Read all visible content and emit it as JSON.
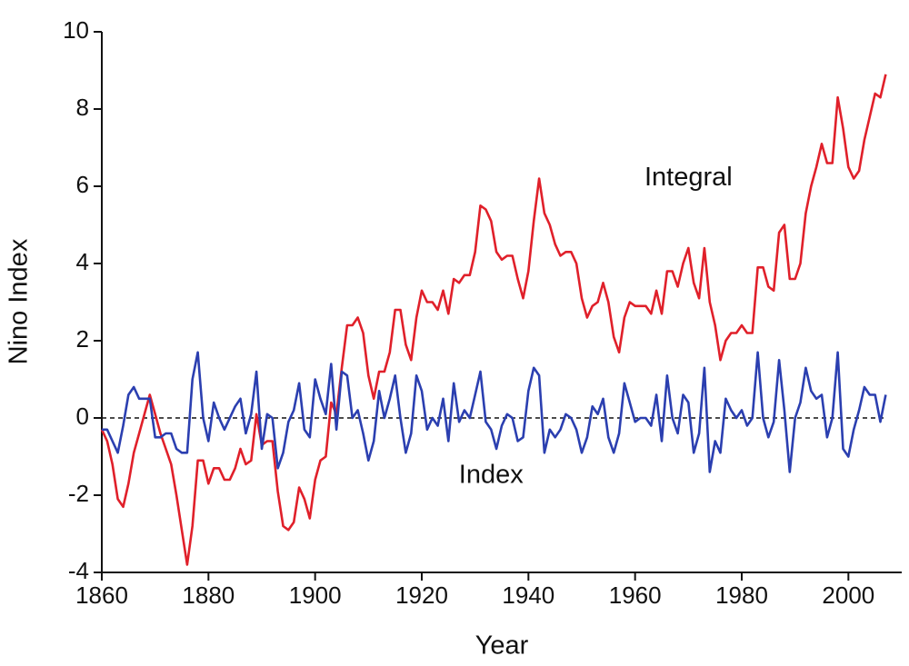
{
  "chart_data": {
    "type": "line",
    "xlabel": "Year",
    "ylabel": "Nino Index",
    "annotations": [
      {
        "text": "Integral",
        "x": 1970,
        "y": 6.2
      },
      {
        "text": "Index",
        "x": 1933,
        "y": -1.5
      }
    ],
    "x": [
      1860,
      1861,
      1862,
      1863,
      1864,
      1865,
      1866,
      1867,
      1868,
      1869,
      1870,
      1871,
      1872,
      1873,
      1874,
      1875,
      1876,
      1877,
      1878,
      1879,
      1880,
      1881,
      1882,
      1883,
      1884,
      1885,
      1886,
      1887,
      1888,
      1889,
      1890,
      1891,
      1892,
      1893,
      1894,
      1895,
      1896,
      1897,
      1898,
      1899,
      1900,
      1901,
      1902,
      1903,
      1904,
      1905,
      1906,
      1907,
      1908,
      1909,
      1910,
      1911,
      1912,
      1913,
      1914,
      1915,
      1916,
      1917,
      1918,
      1919,
      1920,
      1921,
      1922,
      1923,
      1924,
      1925,
      1926,
      1927,
      1928,
      1929,
      1930,
      1931,
      1932,
      1933,
      1934,
      1935,
      1936,
      1937,
      1938,
      1939,
      1940,
      1941,
      1942,
      1943,
      1944,
      1945,
      1946,
      1947,
      1948,
      1949,
      1950,
      1951,
      1952,
      1953,
      1954,
      1955,
      1956,
      1957,
      1958,
      1959,
      1960,
      1961,
      1962,
      1963,
      1964,
      1965,
      1966,
      1967,
      1968,
      1969,
      1970,
      1971,
      1972,
      1973,
      1974,
      1975,
      1976,
      1977,
      1978,
      1979,
      1980,
      1981,
      1982,
      1983,
      1984,
      1985,
      1986,
      1987,
      1988,
      1989,
      1990,
      1991,
      1992,
      1993,
      1994,
      1995,
      1996,
      1997,
      1998,
      1999,
      2000,
      2001,
      2002,
      2003,
      2004,
      2005,
      2006,
      2007
    ],
    "series": [
      {
        "name": "Integral",
        "color": "#e0202a",
        "values": [
          -0.3,
          -0.6,
          -1.2,
          -2.1,
          -2.3,
          -1.7,
          -0.9,
          -0.4,
          0.1,
          0.6,
          0.1,
          -0.4,
          -0.8,
          -1.2,
          -2.0,
          -2.9,
          -3.8,
          -2.8,
          -1.1,
          -1.1,
          -1.7,
          -1.3,
          -1.3,
          -1.6,
          -1.6,
          -1.3,
          -0.8,
          -1.2,
          -1.1,
          0.1,
          -0.7,
          -0.6,
          -0.6,
          -1.9,
          -2.8,
          -2.9,
          -2.7,
          -1.8,
          -2.1,
          -2.6,
          -1.6,
          -1.1,
          -1.0,
          0.4,
          0.1,
          1.3,
          2.4,
          2.4,
          2.6,
          2.2,
          1.1,
          0.5,
          1.2,
          1.2,
          1.7,
          2.8,
          2.8,
          1.9,
          1.5,
          2.6,
          3.3,
          3.0,
          3.0,
          2.8,
          3.3,
          2.7,
          3.6,
          3.5,
          3.7,
          3.7,
          4.3,
          5.5,
          5.4,
          5.1,
          4.3,
          4.1,
          4.2,
          4.2,
          3.6,
          3.1,
          3.8,
          5.1,
          6.2,
          5.3,
          5.0,
          4.5,
          4.2,
          4.3,
          4.3,
          4.0,
          3.1,
          2.6,
          2.9,
          3.0,
          3.5,
          3.0,
          2.1,
          1.7,
          2.6,
          3.0,
          2.9,
          2.9,
          2.9,
          2.7,
          3.3,
          2.7,
          3.8,
          3.8,
          3.4,
          4.0,
          4.4,
          3.5,
          3.1,
          4.4,
          3.0,
          2.4,
          1.5,
          2.0,
          2.2,
          2.2,
          2.4,
          2.2,
          2.2,
          3.9,
          3.9,
          3.4,
          3.3,
          4.8,
          5.0,
          3.6,
          3.6,
          4.0,
          5.3,
          6.0,
          6.5,
          7.1,
          6.6,
          6.6,
          8.3,
          7.5,
          6.5,
          6.2,
          6.4,
          7.2,
          7.8,
          8.4,
          8.3,
          8.9
        ]
      },
      {
        "name": "Index",
        "color": "#2b3fb0",
        "values": [
          -0.3,
          -0.3,
          -0.6,
          -0.9,
          -0.2,
          0.6,
          0.8,
          0.5,
          0.5,
          0.5,
          -0.5,
          -0.5,
          -0.4,
          -0.4,
          -0.8,
          -0.9,
          -0.9,
          1.0,
          1.7,
          0.0,
          -0.6,
          0.4,
          0.0,
          -0.3,
          0.0,
          0.3,
          0.5,
          -0.4,
          0.1,
          1.2,
          -0.8,
          0.1,
          0.0,
          -1.3,
          -0.9,
          -0.1,
          0.2,
          0.9,
          -0.3,
          -0.5,
          1.0,
          0.5,
          0.1,
          1.4,
          -0.3,
          1.2,
          1.1,
          0.0,
          0.2,
          -0.4,
          -1.1,
          -0.6,
          0.7,
          0.0,
          0.5,
          1.1,
          0.0,
          -0.9,
          -0.4,
          1.1,
          0.7,
          -0.3,
          0.0,
          -0.2,
          0.5,
          -0.6,
          0.9,
          -0.1,
          0.2,
          0.0,
          0.6,
          1.2,
          -0.1,
          -0.3,
          -0.8,
          -0.2,
          0.1,
          0.0,
          -0.6,
          -0.5,
          0.7,
          1.3,
          1.1,
          -0.9,
          -0.3,
          -0.5,
          -0.3,
          0.1,
          0.0,
          -0.3,
          -0.9,
          -0.5,
          0.3,
          0.1,
          0.5,
          -0.5,
          -0.9,
          -0.4,
          0.9,
          0.4,
          -0.1,
          0.0,
          0.0,
          -0.2,
          0.6,
          -0.6,
          1.1,
          0.0,
          -0.4,
          0.6,
          0.4,
          -0.9,
          -0.4,
          1.3,
          -1.4,
          -0.6,
          -0.9,
          0.5,
          0.2,
          0.0,
          0.2,
          -0.2,
          0.0,
          1.7,
          0.0,
          -0.5,
          -0.1,
          1.5,
          0.2,
          -1.4,
          0.0,
          0.4,
          1.3,
          0.7,
          0.5,
          0.6,
          -0.5,
          0.0,
          1.7,
          -0.8,
          -1.0,
          -0.3,
          0.2,
          0.8,
          0.6,
          0.6,
          -0.1,
          0.6
        ]
      }
    ],
    "baseline": 0,
    "xlim": [
      1860,
      2010
    ],
    "xticks": [
      1860,
      1880,
      1900,
      1920,
      1940,
      1960,
      1980,
      2000
    ],
    "ylim": [
      -4,
      10
    ],
    "yticks": [
      -4,
      -2,
      0,
      2,
      4,
      6,
      8,
      10
    ]
  }
}
